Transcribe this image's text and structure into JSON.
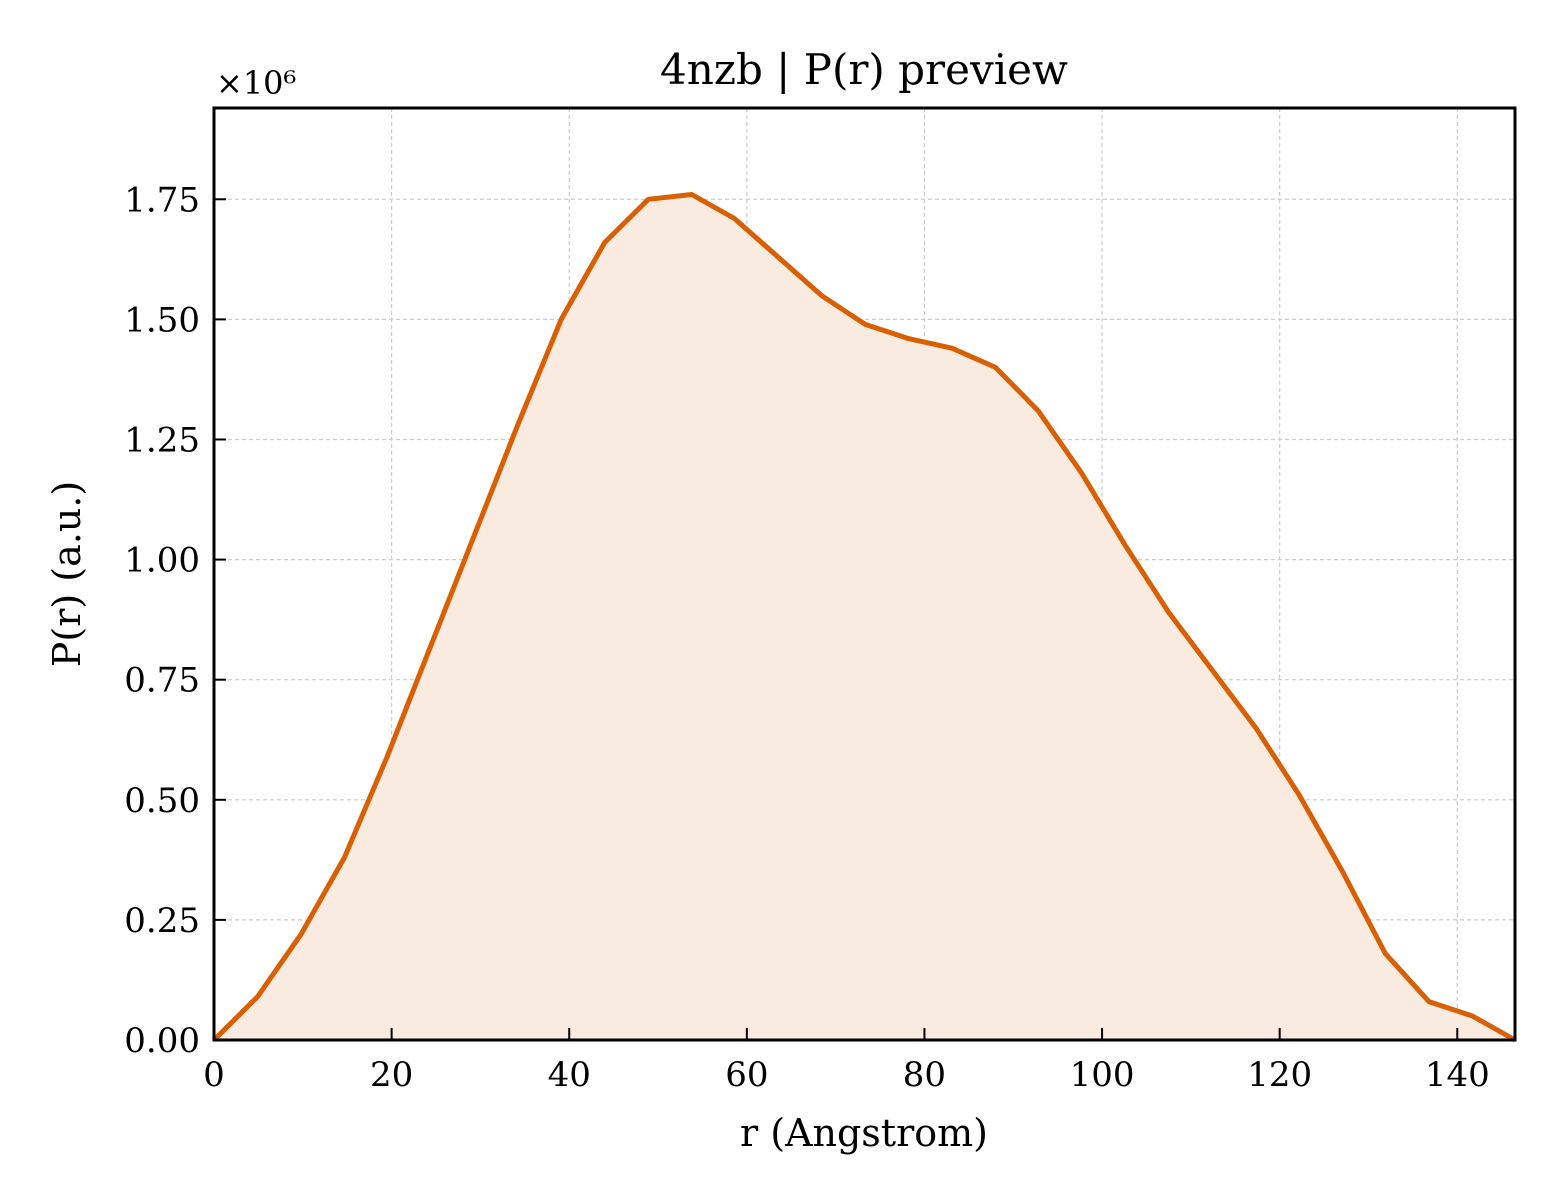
{
  "chart_data": {
    "type": "area",
    "title": "4nzb | P(r) preview",
    "xlabel": "r (Angstrom)",
    "ylabel": "P(r) (a.u.)",
    "y_multiplier": "×10⁶",
    "xlim": [
      0,
      146.5
    ],
    "ylim": [
      0,
      1.94
    ],
    "x_ticks": [
      0,
      20,
      40,
      60,
      80,
      100,
      120,
      140
    ],
    "y_ticks": [
      0.0,
      0.25,
      0.5,
      0.75,
      1.0,
      1.25,
      1.5,
      1.75
    ],
    "x_tick_labels": [
      "0",
      "20",
      "40",
      "60",
      "80",
      "100",
      "120",
      "140"
    ],
    "y_tick_labels": [
      "0.00",
      "0.25",
      "0.50",
      "0.75",
      "1.00",
      "1.25",
      "1.50",
      "1.75"
    ],
    "grid": true,
    "line_color": "#d95f02",
    "fill_color": "#f9ebdf",
    "series": [
      {
        "x": [
          0,
          4.9,
          9.8,
          14.7,
          19.5,
          24.4,
          29.3,
          34.2,
          39.1,
          44.0,
          48.9,
          53.8,
          58.6,
          63.5,
          68.4,
          73.3,
          78.2,
          83.1,
          88.0,
          92.8,
          97.7,
          102.6,
          107.5,
          112.4,
          117.3,
          122.2,
          127.1,
          131.9,
          136.8,
          141.7,
          146.6
        ],
        "values": [
          0.0,
          0.09,
          0.22,
          0.38,
          0.59,
          0.82,
          1.05,
          1.28,
          1.5,
          1.66,
          1.75,
          1.76,
          1.71,
          1.63,
          1.55,
          1.49,
          1.46,
          1.44,
          1.4,
          1.31,
          1.18,
          1.03,
          0.89,
          0.77,
          0.65,
          0.51,
          0.35,
          0.18,
          0.08,
          0.05,
          0.0
        ]
      }
    ]
  }
}
